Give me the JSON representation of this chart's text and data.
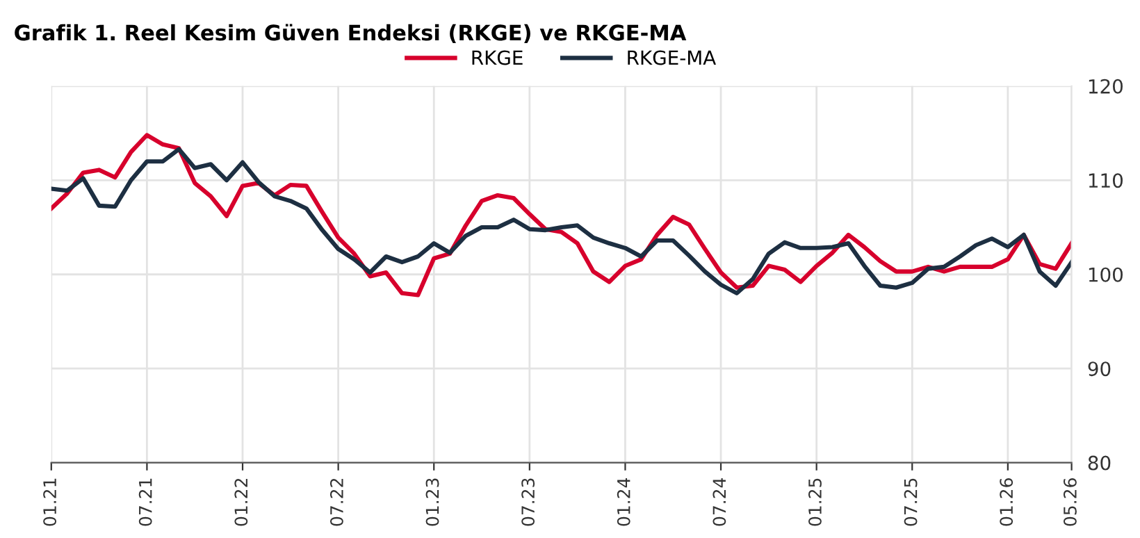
{
  "chart_data": {
    "type": "line",
    "title": "Grafik 1. Reel Kesim Güven Endeksi (RKGE) ve RKGE-MA",
    "x": [
      "2021-01",
      "2021-02",
      "2021-03",
      "2021-04",
      "2021-05",
      "2021-06",
      "2021-07",
      "2021-08",
      "2021-09",
      "2021-10",
      "2021-11",
      "2021-12",
      "2022-01",
      "2022-02",
      "2022-03",
      "2022-04",
      "2022-05",
      "2022-06",
      "2022-07",
      "2022-08",
      "2022-09",
      "2022-10",
      "2022-11",
      "2022-12",
      "2023-01",
      "2023-02",
      "2023-03",
      "2023-04",
      "2023-05",
      "2023-06",
      "2023-07",
      "2023-08",
      "2023-09",
      "2023-10",
      "2023-11",
      "2023-12",
      "2024-01",
      "2024-02",
      "2024-03",
      "2024-04",
      "2024-05",
      "2024-06",
      "2024-07",
      "2024-08",
      "2024-09",
      "2024-10",
      "2024-11",
      "2024-12",
      "2025-01",
      "2025-02",
      "2025-03",
      "2025-04",
      "2025-05",
      "2025-06",
      "2025-07",
      "2025-08",
      "2025-09",
      "2025-10",
      "2025-11",
      "2025-12",
      "2026-01",
      "2026-02",
      "2026-03",
      "2026-04",
      "2026-05"
    ],
    "series": [
      {
        "name": "RKGE",
        "color": "#d7002c",
        "values": [
          107.0,
          108.6,
          110.8,
          111.1,
          110.3,
          113.0,
          114.8,
          113.8,
          113.4,
          109.7,
          108.3,
          106.2,
          109.4,
          109.7,
          108.4,
          109.5,
          109.4,
          106.6,
          103.9,
          102.2,
          99.8,
          100.2,
          98.0,
          97.8,
          101.7,
          102.2,
          105.2,
          107.8,
          108.4,
          108.1,
          106.4,
          104.8,
          104.5,
          103.3,
          100.3,
          99.2,
          100.9,
          101.6,
          104.2,
          106.1,
          105.3,
          102.7,
          100.2,
          98.6,
          98.8,
          100.9,
          100.5,
          99.2,
          100.9,
          102.3,
          104.2,
          102.9,
          101.4,
          100.3,
          100.3,
          100.8,
          100.3,
          100.8,
          100.8,
          100.8,
          101.6,
          104.2,
          101.1,
          100.6,
          103.3
        ]
      },
      {
        "name": "RKGE-MA",
        "color": "#1d2f42",
        "values": [
          109.1,
          108.9,
          110.2,
          107.3,
          107.2,
          110.0,
          112.0,
          112.0,
          113.3,
          111.3,
          111.7,
          110.0,
          111.9,
          109.8,
          108.3,
          107.8,
          107.0,
          104.7,
          102.7,
          101.6,
          100.2,
          101.9,
          101.3,
          101.9,
          103.3,
          102.3,
          104.1,
          105.0,
          105.0,
          105.8,
          104.8,
          104.7,
          105.0,
          105.2,
          103.9,
          103.3,
          102.8,
          101.9,
          103.6,
          103.6,
          102.0,
          100.3,
          98.9,
          98.0,
          99.5,
          102.2,
          103.4,
          102.8,
          102.8,
          102.9,
          103.3,
          100.9,
          98.8,
          98.6,
          99.1,
          100.6,
          100.8,
          101.9,
          103.1,
          103.8,
          102.9,
          104.2,
          100.3,
          98.8,
          101.3
        ]
      }
    ],
    "xlim": [
      "2021-01",
      "2026-05"
    ],
    "xticks": [
      {
        "value": "2021-01",
        "label": "01.21"
      },
      {
        "value": "2021-07",
        "label": "07.21"
      },
      {
        "value": "2022-01",
        "label": "01.22"
      },
      {
        "value": "2022-07",
        "label": "07.22"
      },
      {
        "value": "2023-01",
        "label": "01.23"
      },
      {
        "value": "2023-07",
        "label": "07.23"
      },
      {
        "value": "2024-01",
        "label": "01.24"
      },
      {
        "value": "2024-07",
        "label": "07.24"
      },
      {
        "value": "2025-01",
        "label": "01.25"
      },
      {
        "value": "2025-07",
        "label": "07.25"
      },
      {
        "value": "2026-01",
        "label": "01.26"
      },
      {
        "value": "2026-05",
        "label": "05.26"
      }
    ],
    "ylim": [
      80,
      120
    ],
    "yticks": [
      80,
      90,
      100,
      110,
      120
    ],
    "grid": true,
    "legend": "top",
    "marker": "none",
    "line_style": "solid"
  }
}
